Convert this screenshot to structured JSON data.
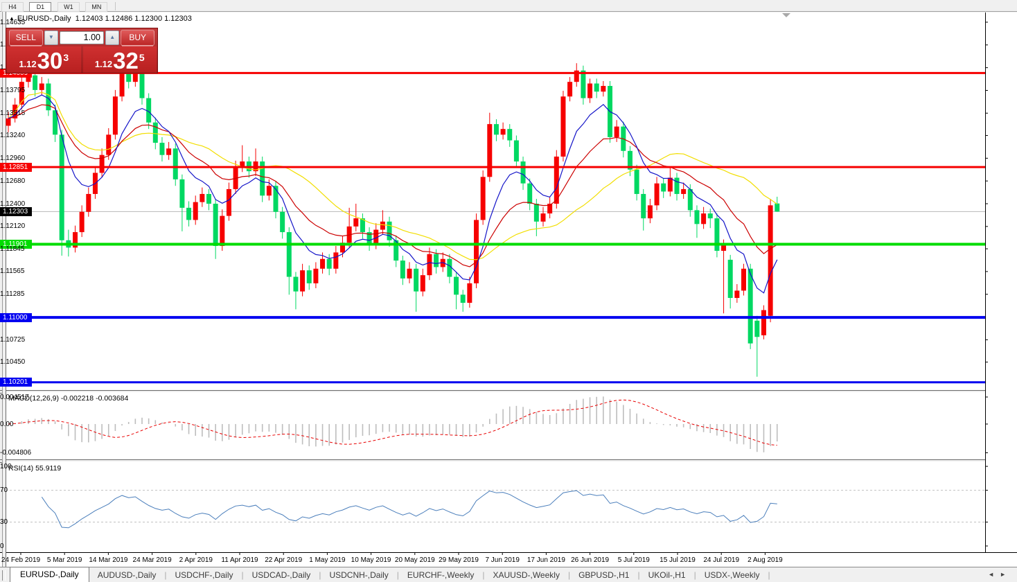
{
  "toolbar": {
    "timeframes": [
      "H4",
      "D1",
      "W1",
      "MN"
    ],
    "active_timeframe": "D1"
  },
  "chart": {
    "title_symbol": "EURUSD-,Daily",
    "title_ohlc": "1.12403 1.12486 1.12300 1.12303",
    "trade_panel": {
      "sell_label": "SELL",
      "buy_label": "BUY",
      "volume": "1.00",
      "sell_price_small": "1.12",
      "sell_price_big": "30",
      "sell_price_sup": "3",
      "buy_price_small": "1.12",
      "buy_price_big": "32",
      "buy_price_sup": "5"
    }
  },
  "chart_data": {
    "type": "candlestick",
    "symbol": "EURUSD-",
    "timeframe": "Daily",
    "bull_color": "#f60000",
    "bear_color": "#00d862",
    "current_price": {
      "value": 1.12303,
      "label": "1.12303",
      "line_color": "#b8b8b8",
      "badge_bg": "#000000"
    },
    "price_axis_ticks": [
      "1.14635",
      "1.14355",
      "1.14075",
      "1.13795",
      "1.13515",
      "1.13240",
      "1.12960",
      "1.12680",
      "1.12400",
      "1.12120",
      "1.11845",
      "1.11565",
      "1.11285",
      "1.10725",
      "1.10450"
    ],
    "hlines": [
      {
        "price": 1.14009,
        "label": "1.14009",
        "color": "#f60000",
        "thickness": 3
      },
      {
        "price": 1.12851,
        "label": "1.12851",
        "color": "#f60000",
        "thickness": 3
      },
      {
        "price": 1.11901,
        "label": "1.11901",
        "color": "#00dc00",
        "thickness": 4
      },
      {
        "price": 1.11,
        "label": "1.11000",
        "color": "#0000f0",
        "thickness": 4
      },
      {
        "price": 1.10201,
        "label": "1.10201",
        "color": "#0000f0",
        "thickness": 3
      }
    ],
    "x_axis_dates": [
      "24 Feb 2019",
      "5 Mar 2019",
      "14 Mar 2019",
      "24 Mar 2019",
      "2 Apr 2019",
      "11 Apr 2019",
      "22 Apr 2019",
      "1 May 2019",
      "10 May 2019",
      "20 May 2019",
      "29 May 2019",
      "7 Jun 2019",
      "17 Jun 2019",
      "26 Jun 2019",
      "5 Jul 2019",
      "15 Jul 2019",
      "24 Jul 2019",
      "2 Aug 2019"
    ],
    "moving_averages": [
      {
        "name": "slow",
        "period": 30,
        "type": "sma",
        "color": "#f2de00"
      },
      {
        "name": "medium",
        "period": 18,
        "type": "ema",
        "color": "#cc0000"
      },
      {
        "name": "fast",
        "period": 8,
        "type": "ema",
        "color": "#1414c8"
      }
    ],
    "candles": [
      [
        1.1336,
        1.1353,
        1.1328,
        1.1345
      ],
      [
        1.1345,
        1.137,
        1.134,
        1.1362
      ],
      [
        1.1362,
        1.1402,
        1.1356,
        1.139
      ],
      [
        1.139,
        1.1422,
        1.1383,
        1.1398
      ],
      [
        1.1398,
        1.1406,
        1.1372,
        1.138
      ],
      [
        1.138,
        1.1396,
        1.1374,
        1.1388
      ],
      [
        1.1388,
        1.1394,
        1.1348,
        1.1355
      ],
      [
        1.1355,
        1.1362,
        1.1316,
        1.1325
      ],
      [
        1.1325,
        1.1331,
        1.1176,
        1.1195
      ],
      [
        1.1195,
        1.1208,
        1.1175,
        1.1186
      ],
      [
        1.1186,
        1.1213,
        1.118,
        1.1205
      ],
      [
        1.1205,
        1.1238,
        1.1199,
        1.123
      ],
      [
        1.123,
        1.126,
        1.1224,
        1.1252
      ],
      [
        1.1252,
        1.1286,
        1.1246,
        1.1278
      ],
      [
        1.1278,
        1.1308,
        1.1272,
        1.13
      ],
      [
        1.13,
        1.1333,
        1.1294,
        1.1325
      ],
      [
        1.1325,
        1.138,
        1.1319,
        1.1372
      ],
      [
        1.1372,
        1.1412,
        1.1366,
        1.1405
      ],
      [
        1.1405,
        1.1415,
        1.1382,
        1.139
      ],
      [
        1.139,
        1.141,
        1.1384,
        1.14
      ],
      [
        1.14,
        1.1406,
        1.1362,
        1.137
      ],
      [
        1.137,
        1.1376,
        1.1332,
        1.134
      ],
      [
        1.134,
        1.1346,
        1.1307,
        1.1315
      ],
      [
        1.1315,
        1.1322,
        1.1292,
        1.13
      ],
      [
        1.13,
        1.1316,
        1.1294,
        1.1308
      ],
      [
        1.1308,
        1.1314,
        1.1262,
        1.127
      ],
      [
        1.127,
        1.1276,
        1.1206,
        1.1235
      ],
      [
        1.1235,
        1.1243,
        1.1212,
        1.122
      ],
      [
        1.122,
        1.125,
        1.1214,
        1.1242
      ],
      [
        1.1242,
        1.126,
        1.1236,
        1.1252
      ],
      [
        1.1252,
        1.1258,
        1.1232,
        1.124
      ],
      [
        1.124,
        1.1246,
        1.1172,
        1.1188
      ],
      [
        1.1188,
        1.1233,
        1.1182,
        1.1225
      ],
      [
        1.1225,
        1.1266,
        1.1219,
        1.1258
      ],
      [
        1.1258,
        1.1293,
        1.1252,
        1.1285
      ],
      [
        1.1285,
        1.1312,
        1.1279,
        1.1292
      ],
      [
        1.1292,
        1.1298,
        1.1272,
        1.128
      ],
      [
        1.128,
        1.1308,
        1.1274,
        1.1292
      ],
      [
        1.1292,
        1.1298,
        1.1242,
        1.125
      ],
      [
        1.125,
        1.127,
        1.1244,
        1.1262
      ],
      [
        1.1262,
        1.1268,
        1.1222,
        1.123
      ],
      [
        1.123,
        1.1236,
        1.1197,
        1.1205
      ],
      [
        1.1205,
        1.1211,
        1.1128,
        1.115
      ],
      [
        1.115,
        1.1156,
        1.111,
        1.1132
      ],
      [
        1.1132,
        1.1166,
        1.1126,
        1.1158
      ],
      [
        1.1158,
        1.1164,
        1.1134,
        1.1142
      ],
      [
        1.1142,
        1.1168,
        1.1136,
        1.116
      ],
      [
        1.116,
        1.118,
        1.1154,
        1.1172
      ],
      [
        1.1172,
        1.1178,
        1.1152,
        1.116
      ],
      [
        1.116,
        1.1188,
        1.1154,
        1.118
      ],
      [
        1.118,
        1.12,
        1.1174,
        1.1192
      ],
      [
        1.1192,
        1.1235,
        1.1186,
        1.1212
      ],
      [
        1.1212,
        1.124,
        1.1206,
        1.1222
      ],
      [
        1.1222,
        1.1228,
        1.1197,
        1.1205
      ],
      [
        1.1205,
        1.1211,
        1.1182,
        1.119
      ],
      [
        1.119,
        1.1216,
        1.1184,
        1.1208
      ],
      [
        1.1208,
        1.1232,
        1.1202,
        1.1218
      ],
      [
        1.1218,
        1.1224,
        1.1187,
        1.1195
      ],
      [
        1.1195,
        1.1201,
        1.1162,
        1.117
      ],
      [
        1.117,
        1.1176,
        1.114,
        1.1148
      ],
      [
        1.1148,
        1.1168,
        1.1142,
        1.116
      ],
      [
        1.116,
        1.1166,
        1.1107,
        1.1132
      ],
      [
        1.1132,
        1.116,
        1.1126,
        1.1152
      ],
      [
        1.1152,
        1.1186,
        1.1146,
        1.1178
      ],
      [
        1.1178,
        1.1184,
        1.1154,
        1.1162
      ],
      [
        1.1162,
        1.118,
        1.1156,
        1.1172
      ],
      [
        1.1172,
        1.1178,
        1.1142,
        1.115
      ],
      [
        1.115,
        1.1156,
        1.111,
        1.1128
      ],
      [
        1.1128,
        1.1134,
        1.1107,
        1.1118
      ],
      [
        1.1118,
        1.115,
        1.1112,
        1.1142
      ],
      [
        1.1142,
        1.1228,
        1.1136,
        1.122
      ],
      [
        1.122,
        1.1281,
        1.1214,
        1.1273
      ],
      [
        1.1273,
        1.1352,
        1.1267,
        1.1338
      ],
      [
        1.1338,
        1.1344,
        1.1317,
        1.1325
      ],
      [
        1.1325,
        1.134,
        1.1319,
        1.1332
      ],
      [
        1.1332,
        1.1338,
        1.131,
        1.1318
      ],
      [
        1.1318,
        1.1324,
        1.1284,
        1.1292
      ],
      [
        1.1292,
        1.1298,
        1.1257,
        1.1265
      ],
      [
        1.1265,
        1.1271,
        1.1232,
        1.124
      ],
      [
        1.124,
        1.1246,
        1.12,
        1.1218
      ],
      [
        1.1218,
        1.1236,
        1.1212,
        1.1228
      ],
      [
        1.1228,
        1.1248,
        1.1222,
        1.124
      ],
      [
        1.124,
        1.1306,
        1.1234,
        1.1298
      ],
      [
        1.1298,
        1.1379,
        1.1292,
        1.1372
      ],
      [
        1.1372,
        1.1396,
        1.1366,
        1.139
      ],
      [
        1.139,
        1.1413,
        1.1384,
        1.1404
      ],
      [
        1.1404,
        1.141,
        1.1362,
        1.137
      ],
      [
        1.137,
        1.1394,
        1.1364,
        1.1388
      ],
      [
        1.1388,
        1.1394,
        1.137,
        1.1378
      ],
      [
        1.1378,
        1.1391,
        1.1372,
        1.1385
      ],
      [
        1.1385,
        1.1391,
        1.1315,
        1.1322
      ],
      [
        1.1322,
        1.1343,
        1.1316,
        1.1335
      ],
      [
        1.1335,
        1.1341,
        1.1297,
        1.1305
      ],
      [
        1.1305,
        1.1311,
        1.1274,
        1.1282
      ],
      [
        1.1282,
        1.1288,
        1.1244,
        1.1252
      ],
      [
        1.1252,
        1.1258,
        1.1207,
        1.1222
      ],
      [
        1.1222,
        1.1246,
        1.1216,
        1.1238
      ],
      [
        1.1238,
        1.1273,
        1.1232,
        1.1265
      ],
      [
        1.1265,
        1.1271,
        1.1247,
        1.1255
      ],
      [
        1.1255,
        1.1286,
        1.1249,
        1.1272
      ],
      [
        1.1272,
        1.1278,
        1.1244,
        1.1252
      ],
      [
        1.1252,
        1.1266,
        1.1246,
        1.1258
      ],
      [
        1.1258,
        1.1264,
        1.1224,
        1.1232
      ],
      [
        1.1232,
        1.1238,
        1.1198,
        1.1215
      ],
      [
        1.1215,
        1.1236,
        1.1209,
        1.1228
      ],
      [
        1.1228,
        1.1234,
        1.121,
        1.1222
      ],
      [
        1.1222,
        1.1228,
        1.1174,
        1.1182
      ],
      [
        1.1182,
        1.1196,
        1.1105,
        1.119
      ],
      [
        1.1171,
        1.1177,
        1.1111,
        1.1124
      ],
      [
        1.1124,
        1.1141,
        1.1118,
        1.1133
      ],
      [
        1.1133,
        1.1166,
        1.1127,
        1.116
      ],
      [
        1.116,
        1.1166,
        1.1061,
        1.1068
      ],
      [
        1.1096,
        1.1102,
        1.1027,
        1.1076
      ],
      [
        1.1078,
        1.1115,
        1.1073,
        1.1109
      ],
      [
        1.1102,
        1.1246,
        1.1094,
        1.1238
      ],
      [
        1.12403,
        1.12486,
        1.123,
        1.12303
      ]
    ]
  },
  "macd": {
    "label": "MACD(12,26,9) -0.002218 -0.003684",
    "main_value": "-0.002218",
    "signal_value": "-0.003684",
    "axis_ticks": [
      {
        "value": 0.004517,
        "label": "0.004517"
      },
      {
        "value": 0.0,
        "label": "0.00"
      },
      {
        "value": -0.004806,
        "label": "-0.004806"
      }
    ],
    "hist_color": "#bdbdbd",
    "signal_color": "#e80000"
  },
  "rsi": {
    "label": "RSI(14) 55.9119",
    "value": "55.9119",
    "axis_ticks": [
      {
        "value": 100,
        "label": "100"
      },
      {
        "value": 70,
        "label": "70"
      },
      {
        "value": 30,
        "label": "30"
      },
      {
        "value": 0,
        "label": "0"
      }
    ],
    "levels": [
      30,
      70
    ],
    "line_color": "#4a7ebb",
    "level_color": "#c0c0c0"
  },
  "tabs": {
    "items": [
      "EURUSD-,Daily",
      "AUDUSD-,Daily",
      "USDCHF-,Daily",
      "USDCAD-,Daily",
      "USDCNH-,Daily",
      "EURCHF-,Weekly",
      "XAUUSD-,Weekly",
      "GBPUSD-,H1",
      "UKOil-,H1",
      "USDX-,Weekly"
    ],
    "active": "EURUSD-,Daily"
  }
}
